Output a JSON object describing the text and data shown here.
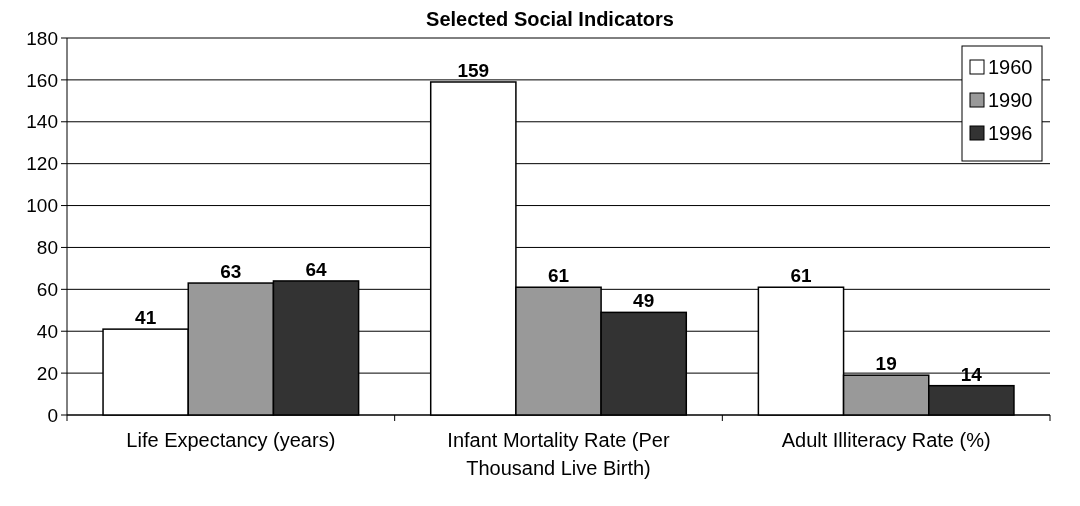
{
  "chart_data": {
    "type": "bar",
    "title": "Selected Social Indicators",
    "categories": [
      "Life Expectancy (years)",
      "Infant Mortality Rate (Per Thousand Live Birth)",
      "Adult Illiteracy Rate (%)"
    ],
    "series": [
      {
        "name": "1960",
        "color": "#ffffff",
        "values": [
          41,
          159,
          61
        ]
      },
      {
        "name": "1990",
        "color": "#999999",
        "values": [
          63,
          61,
          19
        ]
      },
      {
        "name": "1996",
        "color": "#333333",
        "values": [
          64,
          49,
          14
        ]
      }
    ],
    "ylim": [
      0,
      180
    ],
    "yticks": [
      0,
      20,
      40,
      60,
      80,
      100,
      120,
      140,
      160,
      180
    ],
    "grid": "y",
    "legend": "top right",
    "data_labels": true
  }
}
